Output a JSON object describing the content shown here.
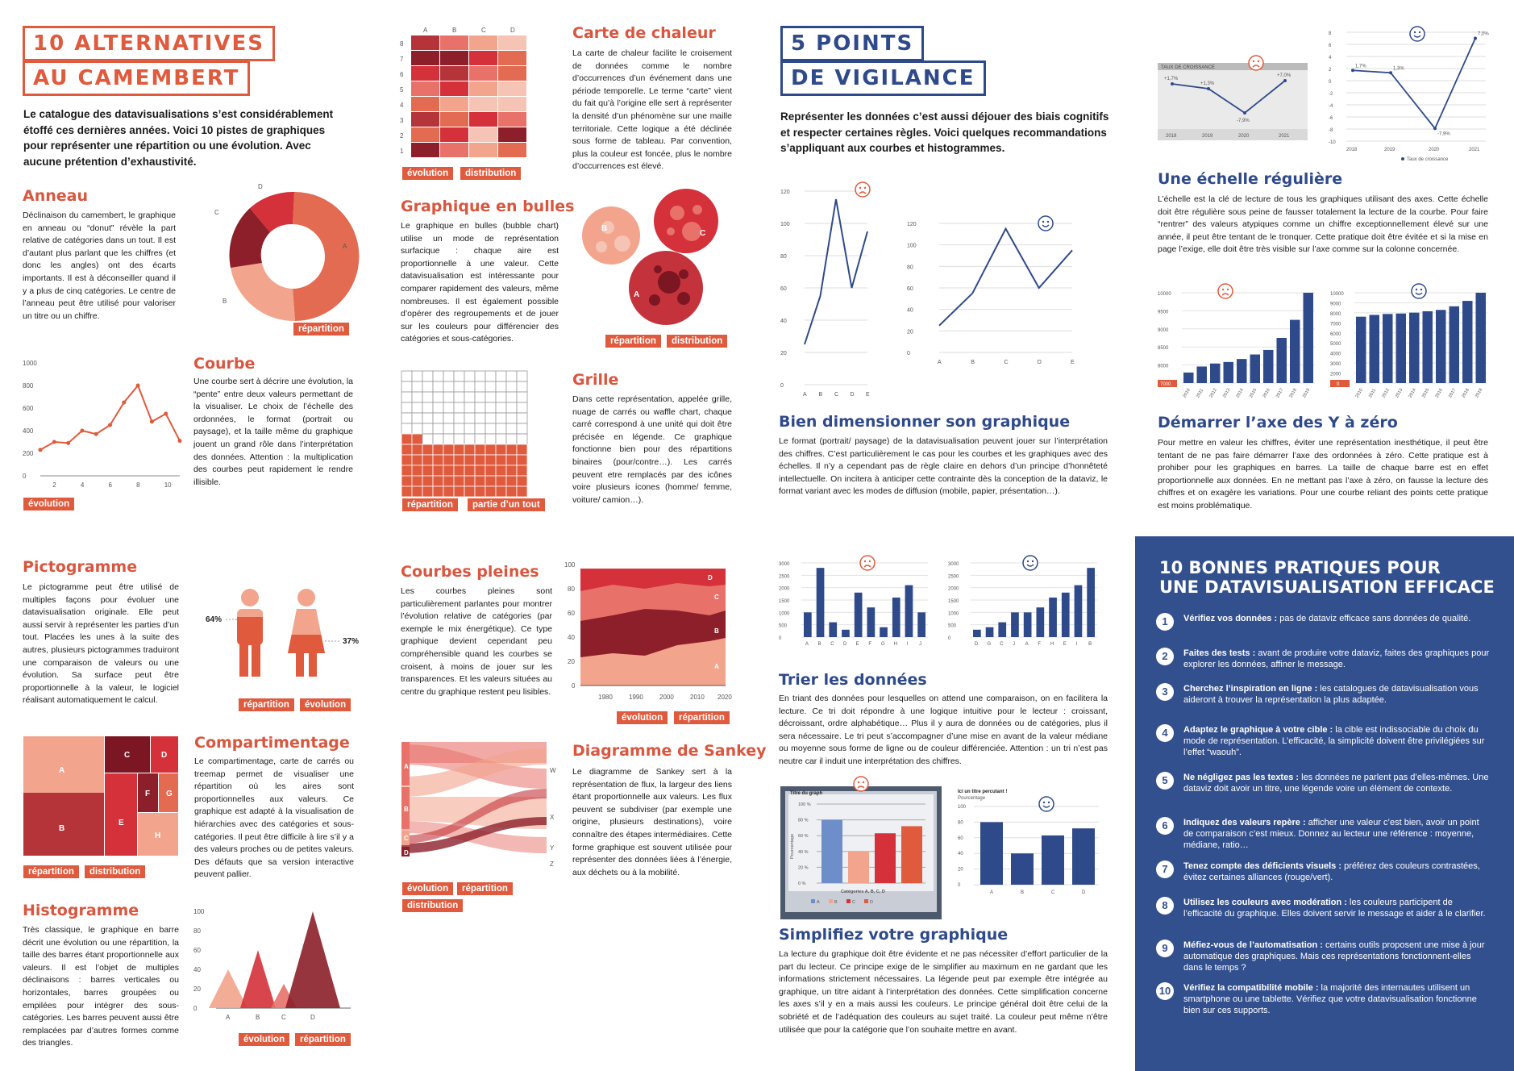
{
  "left": {
    "title_line1": "10 ALTERNATIVES",
    "title_line2": "AU CAMEMBERT",
    "intro": "Le catalogue des datavisualisations s’est considérablement étoffé ces dernières années. Voici 10 pistes de graphiques pour représenter une répartition ou une évolution. Avec aucune prétention d’exhaustivité.",
    "anneau": {
      "title": "Anneau",
      "text": "Déclinaison du camembert, le graphique en anneau ou “donut” révèle la part relative de catégories dans un tout. Il est d’autant plus parlant que les chiffres (et donc les angles) ont des écarts importants. Il est à déconseiller quand il y a plus de cinq catégories. Le centre de l’anneau peut être utilisé pour valoriser un titre ou un chiffre.",
      "tag": "répartition",
      "labels": [
        "A",
        "B",
        "C",
        "D"
      ]
    },
    "courbe": {
      "title": "Courbe",
      "text": "Une courbe sert à décrire une évolution, la “pente” entre deux valeurs permettant de la visualiser. Le choix de l’échelle des ordonnées, le format (portrait ou paysage), et la taille même du graphique jouent un grand rôle dans l’interprétation des données. Attention : la multiplication des courbes peut rapidement le rendre illisible.",
      "tag": "évolution",
      "yticks": [
        "1000",
        "800",
        "600",
        "400",
        "200",
        "0"
      ],
      "xticks": [
        "2",
        "4",
        "6",
        "8",
        "10"
      ]
    },
    "chaleur": {
      "title": "Carte de chaleur",
      "text": "La carte de chaleur facilite le croisement de données comme le nombre d’occurrences d’un événement dans une période temporelle. Le terme “carte” vient du fait qu’à l’origine elle sert à représenter la densité d’un phénomène sur une maille territoriale. Cette logique a été déclinée sous forme de tableau. Par convention, plus la couleur est foncée, plus le nombre d’occurrences est élevé.",
      "tags": [
        "évolution",
        "distribution"
      ],
      "cols": [
        "A",
        "B",
        "C",
        "D"
      ],
      "rows": [
        "8",
        "7",
        "6",
        "5",
        "4",
        "3",
        "2",
        "1"
      ]
    },
    "bulles": {
      "title": "Graphique en bulles",
      "text": "Le graphique en bulles (bubble chart) utilise un mode de représentation surfacique : chaque aire est proportionnelle à une valeur. Cette datavisualisation est intéressante pour comparer rapidement des valeurs, même nombreuses. Il est également possible d’opérer des regroupements et de jouer sur les couleurs pour différencier des catégories et sous-catégories.",
      "tags": [
        "répartition",
        "distribution"
      ],
      "labels": [
        "B",
        "C",
        "A"
      ]
    },
    "grille": {
      "title": "Grille",
      "text": "Dans cette représentation, appelée grille, nuage de carrés ou waffle chart, chaque carré correspond à une unité qui doit être précisée en légende. Ce graphique fonctionne bien pour des répartitions binaires (pour/contre…). Les carrés peuvent etre remplacés par des icônes voire plusieurs icones (homme/ femme, voiture/ camion…).",
      "tags": [
        "répartition",
        "partie d’un tout"
      ]
    },
    "picto": {
      "title": "Pictogramme",
      "text": "Le pictogramme peut être utilisé de multiples façons pour évoluer une datavisualisation originale. Elle peut aussi servir à représenter les parties d’un tout. Placées les unes à la suite des autres, plusieurs pictogrammes traduiront une comparaison de valeurs ou une évolution. Sa surface peut être proportionnelle à la valeur, le logiciel réalisant automatiquement le calcul.",
      "tags": [
        "répartition",
        "évolution"
      ],
      "pct_left": "64%",
      "pct_right": "37%"
    },
    "pleines": {
      "title": "Courbes pleines",
      "text": "Les courbes pleines sont particulièrement parlantes pour montrer l’évolution relative de catégories (par exemple le mix énergétique). Ce type graphique devient cependant peu compréhensible quand les courbes se croisent, à moins de jouer sur les transparences. Et les valeurs situées au centre du graphique restent peu lisibles.",
      "tags": [
        "évolution",
        "répartition"
      ],
      "yticks": [
        "100",
        "80",
        "60",
        "40",
        "20",
        "0"
      ],
      "xticks": [
        "1980",
        "1990",
        "2000",
        "2010",
        "2020"
      ],
      "labels": [
        "D",
        "C",
        "B",
        "A"
      ]
    },
    "compart": {
      "title": "Compartimentage",
      "text": "Le compartimentage, carte de carrés ou treemap permet de visualiser une répartition où les aires sont proportionnelles aux valeurs. Ce graphique est adapté à la visualisation de hiérarchies avec des catégories et sous-catégories. Il peut être difficile à lire s’il y a des valeurs proches ou de petites valeurs. Des défauts que sa version interactive peuvent pallier.",
      "tags": [
        "répartition",
        "distribution"
      ],
      "labels": [
        "A",
        "B",
        "C",
        "D",
        "E",
        "F",
        "G",
        "H"
      ]
    },
    "sankey": {
      "title": "Diagramme de Sankey",
      "text": "Le diagramme de Sankey sert à la représentation de flux, la largeur des liens étant proportionnelle aux valeurs. Les flux peuvent se subdiviser (par exemple une origine, plusieurs destinations), voire connaître des étapes intermédiaires. Cette forme graphique est souvent utilisée pour représenter des données liées à l’énergie, aux déchets ou à la mobilité.",
      "tags": [
        "évolution",
        "répartition",
        "distribution"
      ],
      "left": [
        "A",
        "B",
        "C",
        "D"
      ],
      "right": [
        "W",
        "X",
        "Y",
        "Z"
      ]
    },
    "histo": {
      "title": "Histogramme",
      "text": "Très classique, le graphique en barre décrit une évolution ou une répartition, la taille des barres étant proportionnelle aux valeurs. Il est l’objet de multiples déclinaisons : barres verticales ou horizontales, barres groupées ou empilées pour intégrer des sous-catégories. Les barres peuvent aussi être remplacées par d’autres formes comme des triangles.",
      "tags": [
        "évolution",
        "répartition"
      ],
      "yticks": [
        "100",
        "80",
        "60",
        "40",
        "20",
        "0"
      ],
      "xticks": [
        "A",
        "B",
        "C",
        "D"
      ]
    }
  },
  "right": {
    "title_line1": "5 POINTS",
    "title_line2": "DE VIGILANCE",
    "intro": "Représenter les données c’est aussi déjouer des biais cognitifs et respecter certaines règles. Voici quelques recommandations s’appliquant aux courbes et histogrammes.",
    "dimension": {
      "title": "Bien dimensionner son graphique",
      "text": "Le format (portrait/ paysage) de la datavisualisation peuvent jouer sur l’interprétation des chiffres. C’est particulièrement le cas pour les courbes et les graphiques avec des échelles. Il n’y a cependant pas de règle claire en dehors d’un principe d’honnêteté intellectuelle. On incitera à anticiper cette contrainte dès la conception de la dataviz, le format variant avec les modes de diffusion (mobile, papier, présentation…).",
      "yticks": [
        "120",
        "100",
        "80",
        "60",
        "40",
        "20",
        "0"
      ],
      "xticks": [
        "A",
        "B",
        "C",
        "D",
        "E"
      ]
    },
    "echelle": {
      "title": "Une échelle régulière",
      "text": "L’échelle est la clé de lecture de tous les graphiques utilisant des axes. Cette échelle doit être régulière sous peine de fausser totalement la lecture de la courbe. Pour faire “rentrer” des valeurs atypiques comme un chiffre exceptionnellement élevé sur une année, il peut être tentant de le tronquer. Cette pratique doit être évitée et si la mise en page l’exige, elle doit être très visible sur l’axe comme sur la colonne concernée.",
      "bad_title": "TAUX DE CROISSANCE",
      "labels": [
        "+1,7%",
        "+1,3%",
        "-7,9%",
        "+7,0%"
      ],
      "good_labels": [
        "1,7%",
        "1,3%",
        "-7,9%",
        "7,0%"
      ],
      "years": [
        "2018",
        "2019",
        "2020",
        "2021"
      ],
      "legend": "Taux de croissance",
      "yticks": [
        "8",
        "6",
        "4",
        "2",
        "0",
        "-2",
        "-4",
        "-6",
        "-8",
        "-10"
      ]
    },
    "zero": {
      "title": "Démarrer l’axe des Y à zéro",
      "text": "Pour mettre en valeur les chiffres, éviter une représentation inesthétique, il peut être tentant de ne pas faire démarrer l’axe des ordonnées à zéro. Cette pratique est à prohiber pour les graphiques en barres. La taille de chaque barre est en effet proportionnelle aux données. En ne mettant pas l’axe à zéro, on fausse la lecture des chiffres et on exagère les variations. Pour une courbe reliant des points cette pratique est moins problématique.",
      "yticks_bad": [
        "10000",
        "9500",
        "9000",
        "8500",
        "8000",
        "7500"
      ],
      "bad_base": "7000",
      "yticks_good": [
        "10000",
        "9000",
        "8000",
        "7000",
        "6000",
        "5000",
        "4000",
        "3000",
        "2000",
        "1000"
      ],
      "good_base": "0",
      "years": [
        "2010",
        "2011",
        "2012",
        "2013",
        "2014",
        "2015",
        "2016",
        "2017",
        "2018",
        "2019"
      ]
    },
    "trier": {
      "title": "Trier les données",
      "text": "En triant des données pour lesquelles on attend une comparaison, on en facilitera la lecture. Ce tri doit répondre à une logique intuitive pour le lecteur : croissant, décroissant, ordre alphabétique… Plus il y aura de données ou de catégories, plus il sera nécessaire. Le tri peut s’accompagner d’une mise en avant de la valeur médiane ou moyenne sous forme de ligne ou de couleur différenciée. Attention : un tri n’est pas neutre car il induit une interprétation des chiffres.",
      "yticks": [
        "3000",
        "2500",
        "2000",
        "1500",
        "1000",
        "500",
        "0"
      ],
      "x_unsorted": [
        "A",
        "B",
        "C",
        "D",
        "E",
        "F",
        "G",
        "H",
        "I",
        "J"
      ],
      "x_sorted": [
        "D",
        "G",
        "C",
        "J",
        "A",
        "F",
        "H",
        "E",
        "I",
        "B"
      ]
    },
    "simplifiez": {
      "title": "Simplifiez votre graphique",
      "text": "La lecture du graphique doit être évidente et ne pas nécessiter d’effort particulier de la part du lecteur. Ce principe exige de le simplifier au maximum en ne gardant que les informations strictement nécessaires. La légende peut par exemple être intégrée au graphique, un titre aidant à l’interprétation des données. Cette simplification concerne les axes s’il y en a mais aussi les couleurs. Le principe général doit être celui de la sobriété et de l’adéquation des couleurs au sujet traité. La couleur peut même n’être utilisée que pour la catégorie que l’on souhaite mettre en avant.",
      "bad_title": "Titre du graph",
      "bad_ylabel": "Pourcentage",
      "bad_xlabel": "Catégories A, B, C, D",
      "bad_yticks": [
        "100 %",
        "80 %",
        "60 %",
        "40 %",
        "20 %",
        "0 %"
      ],
      "good_title": "Ici un titre percutant !",
      "good_sub": "Pourcentage",
      "good_yticks": [
        "100",
        "80",
        "60",
        "40",
        "20",
        "0"
      ],
      "cats": [
        "A",
        "B",
        "C",
        "D"
      ]
    }
  },
  "panel": {
    "title_line1": "10 BONNES PRATIQUES POUR",
    "title_line2": "UNE DATAVISUALISATION EFFICACE",
    "tips": [
      {
        "n": "1",
        "bold": "Vérifiez vos données :",
        "text": " pas de dataviz efficace sans données de qualité."
      },
      {
        "n": "2",
        "bold": "Faites des tests :",
        "text": " avant de produire votre dataviz, faites des graphiques pour explorer les données, affiner le message."
      },
      {
        "n": "3",
        "bold": "Cherchez l’inspiration en ligne :",
        "text": " les catalogues de datavisualisation vous aideront à trouver la représentation la plus adaptée."
      },
      {
        "n": "4",
        "bold": "Adaptez le graphique à votre cible :",
        "text": " la cible est indissociable du choix du mode de représentation. L’efficacité, la simplicité doivent être privilégiées sur l’effet “waouh”."
      },
      {
        "n": "5",
        "bold": "Ne négligez pas les textes :",
        "text": " les données ne parlent pas d’elles-mêmes. Une dataviz doit avoir un titre, une légende voire un élément de contexte."
      },
      {
        "n": "6",
        "bold": "Indiquez des valeurs repère :",
        "text": " afficher une valeur c’est bien, avoir un point de comparaison c’est mieux. Donnez au lecteur une référence : moyenne, médiane, ratio…"
      },
      {
        "n": "7",
        "bold": "Tenez compte des déficients visuels :",
        "text": " préférez des couleurs contrastées, évitez certaines alliances (rouge/vert)."
      },
      {
        "n": "8",
        "bold": "Utilisez les couleurs avec modération :",
        "text": " les couleurs participent de l’efficacité du graphique. Elles doivent servir le message et aider à le clarifier."
      },
      {
        "n": "9",
        "bold": "Méfiez-vous de l’automatisation :",
        "text": " certains outils proposent une mise à jour automatique des graphiques. Mais ces représentations fonctionnent-elles dans le temps ?"
      },
      {
        "n": "10",
        "bold": "Vérifiez la compatibilité mobile :",
        "text": " la majorité des internautes utilisent un smartphone ou une tablette. Vérifiez que votre datavisualisation fonctionne bien sur ces supports."
      }
    ]
  },
  "colors": {
    "red": "#e05a3d",
    "dark_red": "#8c1f2a",
    "blue": "#33508e",
    "light": "#f2a48c"
  },
  "chart_data": [
    {
      "type": "pie",
      "categories": [
        "A",
        "B",
        "C",
        "D"
      ],
      "values": [
        45,
        23,
        22,
        10
      ]
    },
    {
      "type": "line",
      "x": [
        1,
        2,
        3,
        4,
        5,
        6,
        7,
        8,
        9,
        10,
        11
      ],
      "values": [
        230,
        300,
        290,
        400,
        370,
        450,
        650,
        800,
        480,
        550,
        310
      ],
      "ylim": [
        0,
        1000
      ]
    },
    {
      "type": "line",
      "x": [
        "A",
        "B",
        "C",
        "D",
        "E"
      ],
      "series": [
        {
          "values": [
            25,
            55,
            115,
            60,
            95
          ]
        }
      ],
      "ylim": [
        0,
        120
      ]
    },
    {
      "type": "line",
      "x": [
        "2018",
        "2019",
        "2020",
        "2021"
      ],
      "values": [
        1.7,
        1.3,
        -7.9,
        7.0
      ],
      "ylim": [
        -10,
        8
      ]
    },
    {
      "type": "bar",
      "categories": [
        "2010",
        "2011",
        "2012",
        "2013",
        "2014",
        "2015",
        "2016",
        "2017",
        "2018",
        "2019"
      ],
      "values": [
        7350,
        7550,
        7650,
        7700,
        7800,
        7950,
        8100,
        8500,
        9100,
        10000
      ],
      "ylim": [
        0,
        10000
      ]
    },
    {
      "type": "bar",
      "categories": [
        "A",
        "B",
        "C",
        "D",
        "E",
        "F",
        "G",
        "H",
        "I",
        "J"
      ],
      "values": [
        1000,
        2800,
        600,
        300,
        1800,
        1200,
        400,
        1600,
        2100,
        1000
      ],
      "ylim": [
        0,
        3000
      ]
    },
    {
      "type": "bar",
      "categories": [
        "A",
        "B",
        "C",
        "D"
      ],
      "values": [
        80,
        40,
        63,
        72
      ],
      "ylim": [
        0,
        100
      ]
    },
    {
      "type": "area",
      "x": [
        "1980",
        "1990",
        "2000",
        "2010",
        "2020"
      ],
      "ylim": [
        0,
        100
      ]
    }
  ]
}
